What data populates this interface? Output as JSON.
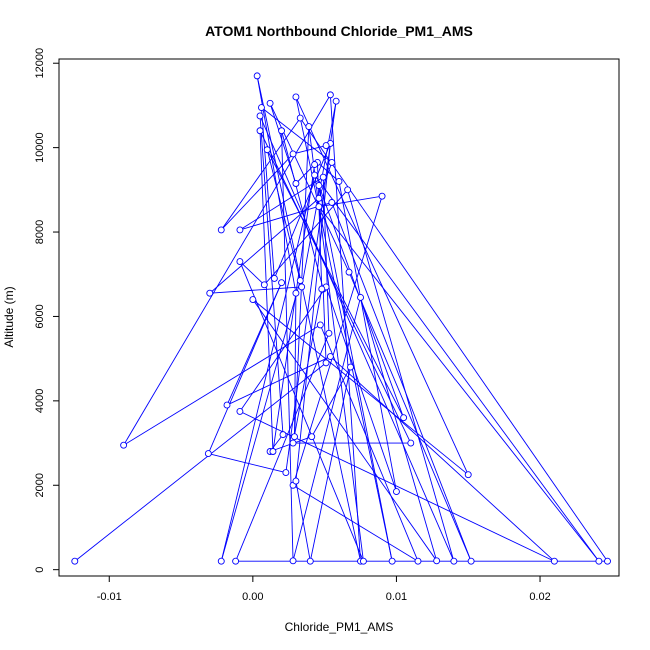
{
  "chart_data": {
    "type": "scatter",
    "title": "ATOM1 Northbound Chloride_PM1_AMS",
    "xlabel": "Chloride_PM1_AMS",
    "ylabel": "Altitude (m)",
    "xlim": [
      -0.0135,
      0.0255
    ],
    "ylim": [
      -150,
      12100
    ],
    "x_ticks": [
      -0.01,
      0.0,
      0.01,
      0.02
    ],
    "x_tick_labels": [
      "-0.01",
      "0.00",
      "0.01",
      "0.02"
    ],
    "y_ticks": [
      0,
      2000,
      4000,
      6000,
      8000,
      10000,
      12000
    ],
    "y_tick_labels": [
      "0",
      "2000",
      "4000",
      "6000",
      "8000",
      "10000",
      "12000"
    ],
    "series_color": "#0000ff",
    "connected": true,
    "marker": "open-circle",
    "grid": false,
    "series": [
      {
        "name": "",
        "points": [
          [
            -0.0124,
            200
          ],
          [
            0.0051,
            4900
          ],
          [
            0.0049,
            6650
          ],
          [
            0.002,
            10400
          ],
          [
            0.0028,
            210
          ],
          [
            0.0075,
            6450
          ],
          [
            0.0128,
            210
          ],
          [
            0.0,
            6400
          ],
          [
            0.015,
            2250
          ],
          [
            0.003,
            11200
          ],
          [
            0.0097,
            200
          ],
          [
            0.0046,
            9100
          ],
          [
            0.0105,
            3600
          ],
          [
            0.001,
            9950
          ],
          [
            0.0033,
            6850
          ],
          [
            -0.0022,
            200
          ],
          [
            0.0043,
            9350
          ],
          [
            0.0241,
            200
          ],
          [
            0.0046,
            8600
          ],
          [
            0.009,
            8850
          ],
          [
            0.0028,
            2000
          ],
          [
            0.0115,
            200
          ],
          [
            0.0047,
            5800
          ],
          [
            -0.009,
            2950
          ],
          [
            0.0054,
            11250
          ],
          [
            0.0075,
            200
          ],
          [
            0.0003,
            11700
          ],
          [
            0.003,
            6550
          ],
          [
            0.0029,
            3150
          ],
          [
            0.0039,
            10500
          ],
          [
            0.0077,
            200
          ],
          [
            -0.0009,
            7300
          ],
          [
            0.0008,
            6750
          ],
          [
            0.0066,
            9000
          ],
          [
            0.014,
            200
          ],
          [
            0.0005,
            10750
          ],
          [
            0.0021,
            3200
          ],
          [
            0.0012,
            2800
          ],
          [
            0.0041,
            3150
          ],
          [
            0.0068,
            4800
          ],
          [
            0.004,
            200
          ],
          [
            0.003,
            2100
          ],
          [
            0.0054,
            10100
          ],
          [
            0.0015,
            6900
          ],
          [
            0.0006,
            10950
          ],
          [
            0.0055,
            9650
          ],
          [
            0.0046,
            8800
          ],
          [
            -0.003,
            6550
          ],
          [
            0.0034,
            6700
          ],
          [
            0.0058,
            11100
          ],
          [
            0.0023,
            2300
          ],
          [
            -0.0031,
            2750
          ],
          [
            0.002,
            6800
          ],
          [
            -0.0018,
            3900
          ],
          [
            0.0054,
            5050
          ],
          [
            0.021,
            200
          ],
          [
            -0.0009,
            3750
          ],
          [
            0.0051,
            6700
          ],
          [
            0.01,
            1850
          ],
          [
            0.006,
            9200
          ],
          [
            0.0045,
            9650
          ],
          [
            0.0048,
            6650
          ],
          [
            0.0028,
            3000
          ],
          [
            0.011,
            3000
          ],
          [
            0.0005,
            10400
          ],
          [
            0.0014,
            2800
          ],
          [
            0.0043,
            9600
          ],
          [
            0.003,
            9150
          ],
          [
            0.0012,
            11050
          ],
          [
            0.0067,
            7050
          ],
          [
            0.0152,
            200
          ],
          [
            0.0055,
            8700
          ],
          [
            -0.0009,
            8050
          ],
          [
            0.0049,
            9300
          ],
          [
            0.0053,
            5600
          ],
          [
            -0.0012,
            200
          ],
          [
            0.0247,
            200
          ],
          [
            0.0033,
            10700
          ],
          [
            -0.0022,
            8050
          ],
          [
            0.0028,
            9850
          ],
          [
            0.0051,
            10050
          ]
        ]
      }
    ]
  }
}
